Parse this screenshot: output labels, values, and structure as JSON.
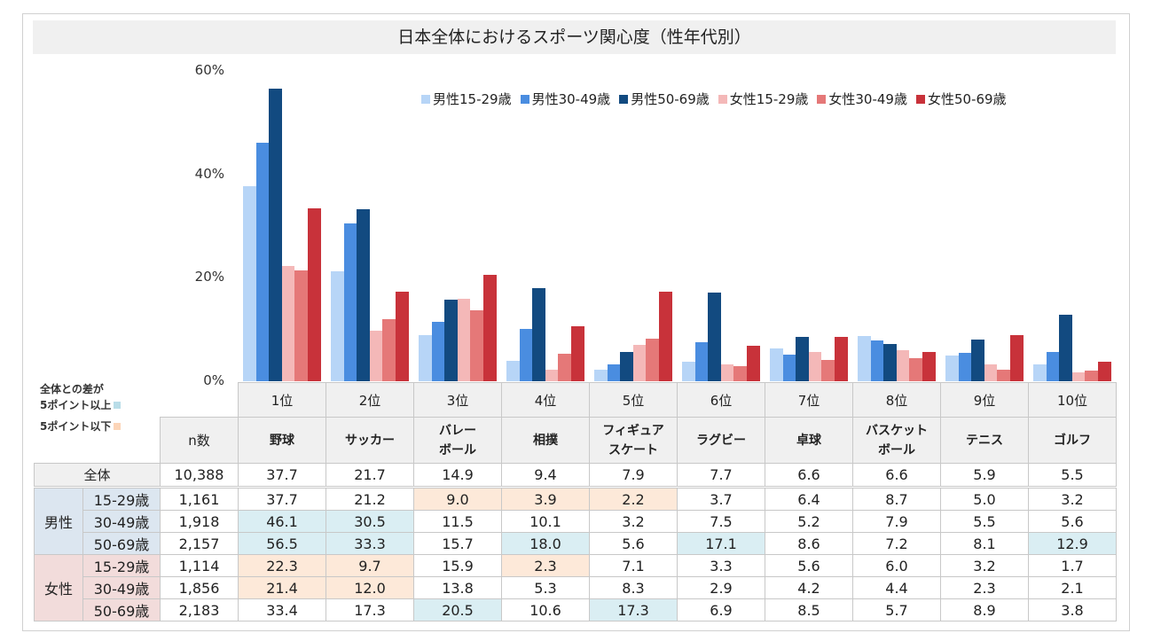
{
  "chart_data": {
    "type": "bar",
    "title": "日本全体におけるスポーツ関心度（性年代別）",
    "ylim": [
      0,
      60
    ],
    "yticks": [
      "0%",
      "20%",
      "40%",
      "60%"
    ],
    "ytick_values": [
      0,
      20,
      40,
      60
    ],
    "legend_position": "top-right",
    "categories": [
      "1位",
      "2位",
      "3位",
      "4位",
      "5位",
      "6位",
      "7位",
      "8位",
      "9位",
      "10位"
    ],
    "sports": [
      "野球",
      "サッカー",
      "バレー\nボール",
      "相撲",
      "フィギュア\nスケート",
      "ラグビー",
      "卓球",
      "バスケット\nボール",
      "テニス",
      "ゴルフ"
    ],
    "series": [
      {
        "name": "男性15-29歳",
        "color": "#b7d5f7",
        "values": [
          37.7,
          21.2,
          9.0,
          3.9,
          2.2,
          3.7,
          6.4,
          8.7,
          5.0,
          3.2
        ]
      },
      {
        "name": "男性30-49歳",
        "color": "#4a8de0",
        "values": [
          46.1,
          30.5,
          11.5,
          10.1,
          3.2,
          7.5,
          5.2,
          7.9,
          5.5,
          5.6
        ]
      },
      {
        "name": "男性50-69歳",
        "color": "#124a80",
        "values": [
          56.5,
          33.3,
          15.7,
          18.0,
          5.6,
          17.1,
          8.6,
          7.2,
          8.1,
          12.9
        ]
      },
      {
        "name": "女性15-29歳",
        "color": "#f4b8b8",
        "values": [
          22.3,
          9.7,
          15.9,
          2.3,
          7.1,
          3.3,
          5.6,
          6.0,
          3.2,
          1.7
        ]
      },
      {
        "name": "女性30-49歳",
        "color": "#e57878",
        "values": [
          21.4,
          12.0,
          13.8,
          5.3,
          8.3,
          2.9,
          4.2,
          4.4,
          2.3,
          2.1
        ]
      },
      {
        "name": "女性50-69歳",
        "color": "#c8323a",
        "values": [
          33.4,
          17.3,
          20.5,
          10.6,
          17.3,
          6.9,
          8.5,
          5.7,
          8.9,
          3.8
        ]
      }
    ]
  },
  "table": {
    "n_header": "n数",
    "total_label": "全体",
    "total_n": "10,388",
    "total_values": [
      "37.7",
      "21.7",
      "14.9",
      "9.4",
      "7.9",
      "7.7",
      "6.6",
      "6.6",
      "5.9",
      "5.5"
    ],
    "groups": [
      {
        "label": "男性",
        "color": "#dce6f0",
        "rows": [
          {
            "age": "15-29歳",
            "n": "1,161",
            "values": [
              "37.7",
              "21.2",
              "9.0",
              "3.9",
              "2.2",
              "3.7",
              "6.4",
              "8.7",
              "5.0",
              "3.2"
            ]
          },
          {
            "age": "30-49歳",
            "n": "1,918",
            "values": [
              "46.1",
              "30.5",
              "11.5",
              "10.1",
              "3.2",
              "7.5",
              "5.2",
              "7.9",
              "5.5",
              "5.6"
            ]
          },
          {
            "age": "50-69歳",
            "n": "2,157",
            "values": [
              "56.5",
              "33.3",
              "15.7",
              "18.0",
              "5.6",
              "17.1",
              "8.6",
              "7.2",
              "8.1",
              "12.9"
            ]
          }
        ]
      },
      {
        "label": "女性",
        "color": "#f2dcdb",
        "rows": [
          {
            "age": "15-29歳",
            "n": "1,114",
            "values": [
              "22.3",
              "9.7",
              "15.9",
              "2.3",
              "7.1",
              "3.3",
              "5.6",
              "6.0",
              "3.2",
              "1.7"
            ]
          },
          {
            "age": "30-49歳",
            "n": "1,856",
            "values": [
              "21.4",
              "12.0",
              "13.8",
              "5.3",
              "8.3",
              "2.9",
              "4.2",
              "4.4",
              "2.3",
              "2.1"
            ]
          },
          {
            "age": "50-69歳",
            "n": "2,183",
            "values": [
              "33.4",
              "17.3",
              "20.5",
              "10.6",
              "17.3",
              "6.9",
              "8.5",
              "5.7",
              "8.9",
              "3.8"
            ]
          }
        ]
      }
    ],
    "highlight_above_color": "#daeef3",
    "highlight_below_color": "#fde9d9"
  },
  "note": {
    "line1": "全体との差が",
    "line2": "5ポイント以上",
    "line3": "5ポイント以下"
  }
}
